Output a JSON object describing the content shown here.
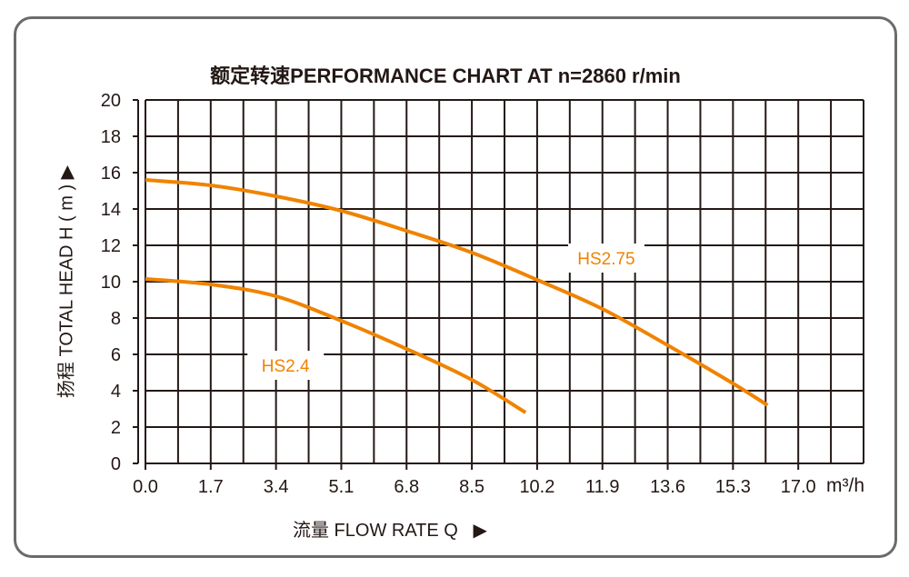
{
  "chart_data": {
    "type": "line",
    "title": "额定转速PERFORMANCE CHART AT  n=2860 r/min",
    "xlabel": "流量 FLOW RATE Q",
    "ylabel": "扬程 TOTAL HEAD H ( m )",
    "x_unit": "m³/h",
    "xlim": [
      0,
      18.7
    ],
    "ylim": [
      0,
      20
    ],
    "x_ticks": [
      "0.0",
      "1.7",
      "3.4",
      "5.1",
      "6.8",
      "8.5",
      "10.2",
      "11.9",
      "13.6",
      "15.3",
      "17.0"
    ],
    "y_ticks": [
      "0",
      "2",
      "4",
      "6",
      "8",
      "10",
      "12",
      "14",
      "16",
      "18",
      "20"
    ],
    "grid": true,
    "series": [
      {
        "name": "HS2.75",
        "color": "#f08300",
        "x": [
          0,
          1.7,
          3.4,
          5.1,
          6.8,
          8.5,
          10.2,
          11.9,
          13.6,
          15.3,
          16.2
        ],
        "y": [
          15.6,
          15.3,
          14.7,
          13.9,
          12.8,
          11.6,
          10.1,
          8.5,
          6.5,
          4.4,
          3.2
        ]
      },
      {
        "name": "HS2.4",
        "color": "#f08300",
        "x": [
          0,
          1.7,
          3.4,
          5.1,
          6.8,
          8.5,
          9.9
        ],
        "y": [
          10.15,
          9.85,
          9.2,
          7.85,
          6.3,
          4.6,
          2.8
        ]
      }
    ]
  }
}
